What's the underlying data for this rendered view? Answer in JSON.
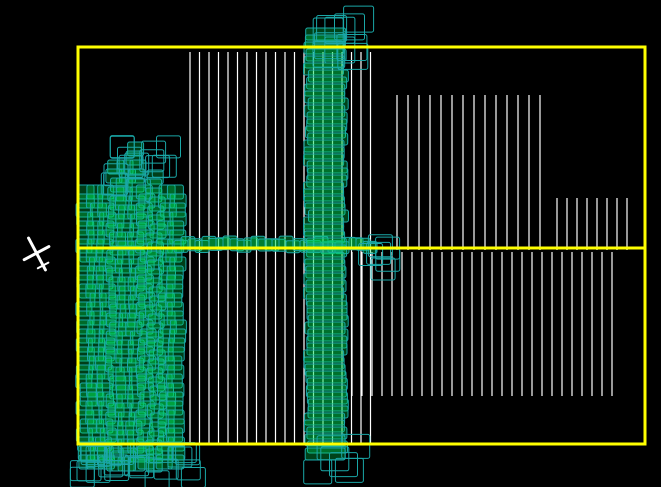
{
  "map": {
    "background_color": "#000000",
    "survey_area": {
      "border_color": "#ffff00",
      "center_line_color": "#ffff00"
    },
    "flight_lines": {
      "color": "#ffffff",
      "groups": [
        {
          "name": "lines-mid",
          "count": 20
        },
        {
          "name": "lines-upper-right",
          "count": 14
        },
        {
          "name": "lines-far-right",
          "count": 8
        },
        {
          "name": "lines-lower-right",
          "count": 27
        }
      ]
    },
    "photo_footprints": {
      "fill_color": "#00dd55",
      "outline_color": "#1aa7a7",
      "clusters": [
        {
          "name": "left-block"
        },
        {
          "name": "central-strip"
        },
        {
          "name": "connector-strip"
        }
      ]
    },
    "aircraft_icon": {
      "name": "airplane-icon",
      "color": "#ffffff"
    }
  }
}
